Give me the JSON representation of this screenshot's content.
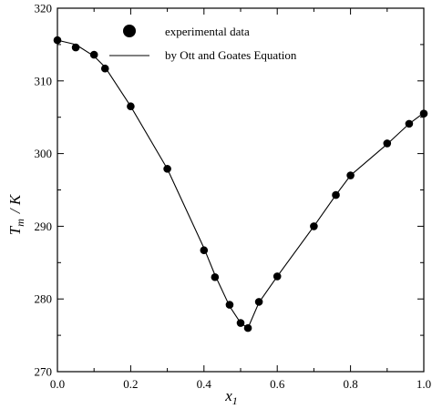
{
  "chart_data": {
    "type": "scatter",
    "title": "",
    "xlabel_main": "x",
    "xlabel_sub": "1",
    "ylabel_main": "T",
    "ylabel_sub": "m",
    "ylabel_unit": "/ K",
    "xlim": [
      0.0,
      1.0
    ],
    "ylim": [
      270,
      320
    ],
    "x_ticks": [
      "0.0",
      "0.2",
      "0.4",
      "0.6",
      "0.8",
      "1.0"
    ],
    "y_ticks": [
      "270",
      "280",
      "290",
      "300",
      "310",
      "320"
    ],
    "grid": false,
    "legend_position": "top-center",
    "series": [
      {
        "name": "experimental data",
        "kind": "markers",
        "x": [
          0.0,
          0.05,
          0.1,
          0.13,
          0.2,
          0.3,
          0.4,
          0.43,
          0.47,
          0.5,
          0.52,
          0.55,
          0.6,
          0.7,
          0.76,
          0.8,
          0.9,
          0.96,
          1.0
        ],
        "y": [
          315.6,
          314.6,
          313.6,
          311.7,
          306.5,
          297.9,
          286.7,
          283.0,
          279.2,
          276.7,
          276.0,
          279.6,
          283.1,
          290.0,
          294.3,
          297.0,
          301.4,
          304.1,
          305.5
        ]
      },
      {
        "name": "by Ott and Goates Equation",
        "kind": "line",
        "x": [
          0.0,
          0.05,
          0.1,
          0.13,
          0.2,
          0.3,
          0.4,
          0.43,
          0.47,
          0.5,
          0.52,
          0.55,
          0.6,
          0.7,
          0.76,
          0.8,
          0.9,
          0.96,
          1.0
        ],
        "y": [
          315.6,
          315.0,
          313.4,
          311.9,
          306.5,
          297.9,
          287.0,
          283.3,
          279.0,
          276.7,
          276.0,
          279.5,
          283.1,
          290.0,
          294.3,
          297.0,
          301.3,
          304.1,
          305.6
        ]
      }
    ]
  },
  "colors": {
    "ink": "#000000",
    "background": "#ffffff"
  }
}
